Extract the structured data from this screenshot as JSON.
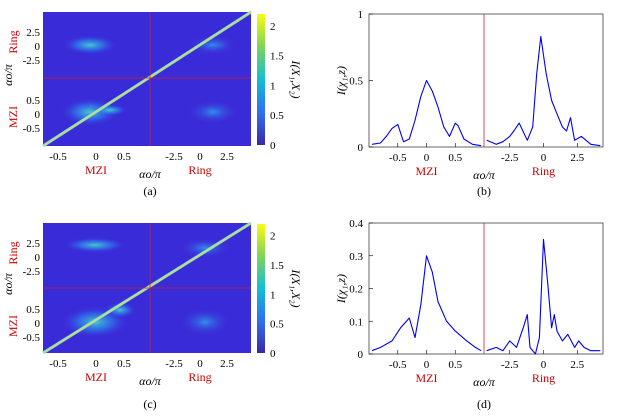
{
  "colorbar_ticks": [
    "0",
    "0.5",
    "1",
    "1.5",
    "2"
  ],
  "colorbar_title": "I(X₁,X₂)",
  "colors": {
    "heatmap_bg": "#3a2bd8",
    "divider": "#cc2233",
    "line": "#0000ee",
    "red_label": "#cc0000",
    "diag": "#fde725"
  },
  "chart_data": [
    {
      "type": "heatmap",
      "panel": "(a)",
      "title": "",
      "xlabel": "αo/π",
      "ylabel": "αo/π",
      "x_groups": [
        "MZI",
        "Ring"
      ],
      "y_groups": [
        "MZI",
        "Ring"
      ],
      "x_ticks": [
        "-0.5",
        "0",
        "0.5",
        "-2.5",
        "0",
        "2.5"
      ],
      "y_ticks_mzi": [
        "0.5",
        "0",
        "-0.5"
      ],
      "y_ticks_ring": [
        "2.5",
        "0",
        "-2.5"
      ],
      "colorbar_range": [
        0,
        2.2
      ],
      "colorbar_label": "I(X1,X2)"
    },
    {
      "type": "line",
      "panel": "(b)",
      "ylabel": "I(χ₁,z)",
      "xlabel": "αo/π",
      "x_groups": [
        "MZI",
        "Ring"
      ],
      "x_ticks": [
        "-0.5",
        "0",
        "0.5",
        "-2.5",
        "0",
        "2.5"
      ],
      "y_ticks": [
        "0",
        "0.5",
        "1"
      ],
      "ylim": [
        0,
        1
      ],
      "series": [
        {
          "name": "MZI",
          "x": [
            -0.95,
            -0.8,
            -0.7,
            -0.6,
            -0.5,
            -0.4,
            -0.3,
            -0.2,
            -0.1,
            0,
            0.1,
            0.2,
            0.3,
            0.4,
            0.5,
            0.55,
            0.65,
            0.8,
            0.95
          ],
          "values": [
            0.02,
            0.03,
            0.08,
            0.14,
            0.17,
            0.04,
            0.06,
            0.2,
            0.38,
            0.5,
            0.42,
            0.3,
            0.15,
            0.08,
            0.18,
            0.16,
            0.06,
            0.02,
            0.01
          ]
        },
        {
          "name": "Ring",
          "x": [
            -4.2,
            -3.5,
            -3.0,
            -2.5,
            -2.2,
            -1.8,
            -1.2,
            -0.8,
            -0.5,
            -0.2,
            0.2,
            0.6,
            1.0,
            1.4,
            1.7,
            2.0,
            2.3,
            2.8,
            3.5,
            4.2
          ],
          "values": [
            0.05,
            0.02,
            0.04,
            0.08,
            0.12,
            0.18,
            0.05,
            0.15,
            0.55,
            0.83,
            0.55,
            0.35,
            0.25,
            0.15,
            0.12,
            0.22,
            0.05,
            0.08,
            0.02,
            0.01
          ]
        }
      ]
    },
    {
      "type": "heatmap",
      "panel": "(c)",
      "title": "",
      "xlabel": "αo/π",
      "ylabel": "αo/π",
      "x_groups": [
        "MZI",
        "Ring"
      ],
      "y_groups": [
        "MZI",
        "Ring"
      ],
      "x_ticks": [
        "-0.5",
        "0",
        "0.5",
        "-2.5",
        "0",
        "2.5"
      ],
      "y_ticks_mzi": [
        "0.5",
        "0",
        "-0.5"
      ],
      "y_ticks_ring": [
        "2.5",
        "0",
        "-2.5"
      ],
      "colorbar_range": [
        0,
        2.2
      ],
      "colorbar_label": "I(X1,X2)"
    },
    {
      "type": "line",
      "panel": "(d)",
      "ylabel": "I(χ₁,z)",
      "xlabel": "αo/π",
      "x_groups": [
        "MZI",
        "Ring"
      ],
      "x_ticks": [
        "-0.5",
        "0",
        "0.5",
        "-2.5",
        "0",
        "2.5"
      ],
      "y_ticks": [
        "0",
        "0.1",
        "0.2",
        "0.3",
        "0.4"
      ],
      "ylim": [
        0,
        0.4
      ],
      "series": [
        {
          "name": "MZI",
          "x": [
            -0.95,
            -0.8,
            -0.6,
            -0.45,
            -0.3,
            -0.2,
            -0.1,
            0,
            0.1,
            0.2,
            0.35,
            0.5,
            0.7,
            0.85,
            0.95
          ],
          "values": [
            0.01,
            0.02,
            0.04,
            0.08,
            0.11,
            0.05,
            0.15,
            0.3,
            0.25,
            0.16,
            0.1,
            0.07,
            0.04,
            0.02,
            0.01
          ]
        },
        {
          "name": "Ring",
          "x": [
            -4.2,
            -3.5,
            -3.0,
            -2.5,
            -2.0,
            -1.5,
            -1.2,
            -1.0,
            -0.6,
            -0.3,
            0,
            0.3,
            0.6,
            0.8,
            1.0,
            1.4,
            1.8,
            2.3,
            2.6,
            3.0,
            3.5,
            4.2
          ],
          "values": [
            0.01,
            0.02,
            0.01,
            0.04,
            0.02,
            0.08,
            0.12,
            0.02,
            0.0,
            0.05,
            0.35,
            0.22,
            0.08,
            0.12,
            0.07,
            0.04,
            0.06,
            0.02,
            0.04,
            0.02,
            0.01,
            0.01
          ]
        }
      ]
    }
  ]
}
